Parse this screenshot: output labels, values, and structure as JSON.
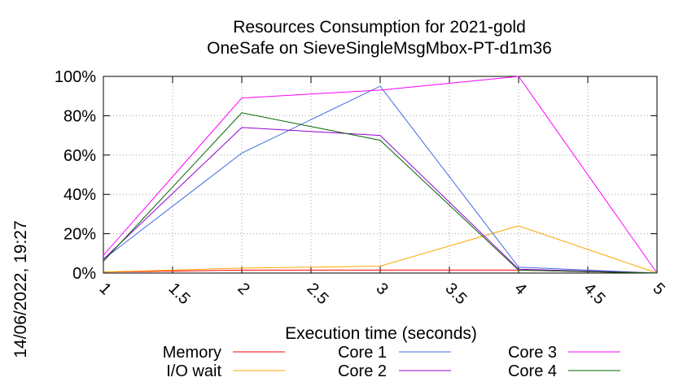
{
  "chart_data": {
    "type": "line",
    "title": "Resources Consumption for 2021-gold",
    "subtitle": "OneSafe on SieveSingleMsgMbox-PT-d1m36",
    "xlabel": "Execution time (seconds)",
    "ylabel": "",
    "side_label": "14/06/2022, 19:27",
    "xlim": [
      1,
      5
    ],
    "ylim": [
      0,
      100
    ],
    "x_ticks": [
      1,
      1.5,
      2,
      2.5,
      3,
      3.5,
      4,
      4.5,
      5
    ],
    "x_tick_labels": [
      "1",
      "1.5",
      "2",
      "2.5",
      "3",
      "3.5",
      "4",
      "4.5",
      "5"
    ],
    "y_ticks": [
      0,
      20,
      40,
      60,
      80,
      100
    ],
    "y_tick_labels": [
      "0%",
      "20%",
      "40%",
      "60%",
      "80%",
      "100%"
    ],
    "grid": true,
    "legend_position": "bottom",
    "series": [
      {
        "name": "Memory",
        "color": "#ff0000",
        "x": [
          1,
          2,
          3,
          4,
          5
        ],
        "y": [
          0.5,
          1.5,
          1.5,
          1.5,
          0
        ]
      },
      {
        "name": "I/O wait",
        "color": "#ffa500",
        "x": [
          1,
          2,
          3,
          4,
          5
        ],
        "y": [
          0.5,
          2.5,
          3.5,
          24,
          0
        ]
      },
      {
        "name": "Core 1",
        "color": "#4169e1",
        "x": [
          1,
          2,
          3,
          4,
          5
        ],
        "y": [
          7,
          61,
          95,
          3,
          0
        ]
      },
      {
        "name": "Core 2",
        "color": "#9400d3",
        "x": [
          1,
          2,
          3,
          4,
          5
        ],
        "y": [
          7,
          74,
          70,
          2,
          0
        ]
      },
      {
        "name": "Core 3",
        "color": "#ff00ff",
        "x": [
          1,
          2,
          3,
          4,
          5
        ],
        "y": [
          9,
          89,
          93,
          100,
          0
        ]
      },
      {
        "name": "Core 4",
        "color": "#006400",
        "x": [
          1,
          2,
          3,
          4,
          5
        ],
        "y": [
          6,
          81.5,
          67.5,
          1.5,
          0
        ]
      }
    ]
  }
}
